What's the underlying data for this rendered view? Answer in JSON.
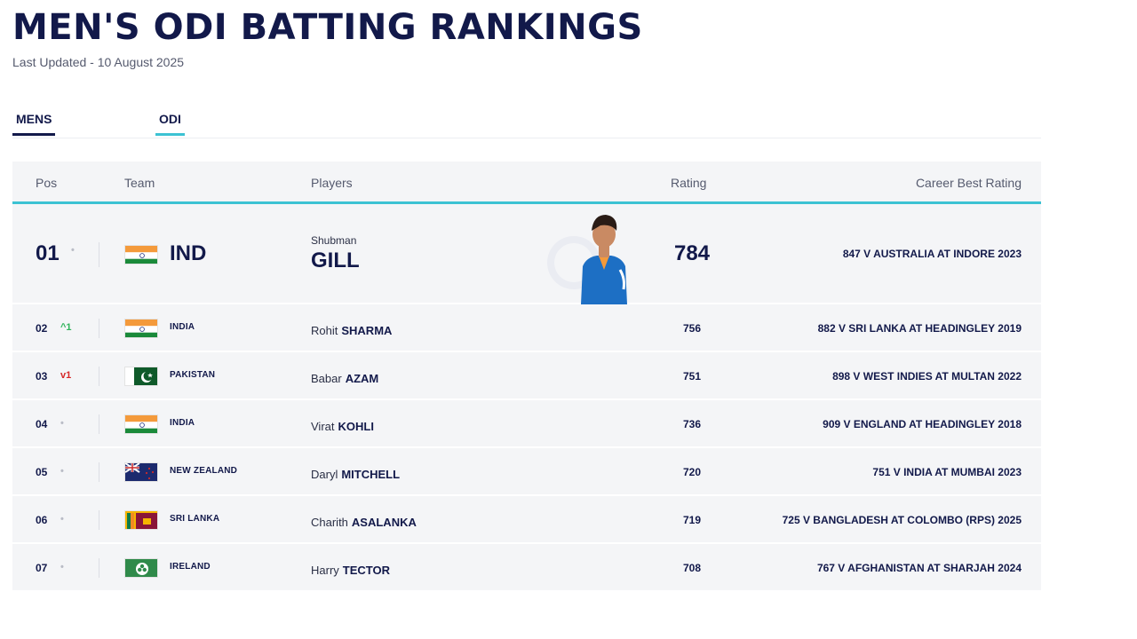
{
  "header": {
    "title": "MEN'S ODI BATTING RANKINGS",
    "updated": "Last Updated - 10 August 2025"
  },
  "tabs": [
    {
      "label": "MENS",
      "active": true
    },
    {
      "label": "ODI",
      "active": true
    }
  ],
  "table": {
    "columns": [
      "Pos",
      "Team",
      "Players",
      "Rating",
      "Career Best Rating"
    ],
    "rows": [
      {
        "pos": "01",
        "move": "•",
        "flag": "india-flag",
        "team": "IND",
        "first": "Shubman",
        "last": "GILL",
        "rating": "784",
        "best": "847 V AUSTRALIA AT INDORE 2023"
      },
      {
        "pos": "02",
        "move": "^1",
        "flag": "india-flag",
        "team": "INDIA",
        "first": "Rohit",
        "last": "SHARMA",
        "rating": "756",
        "best": "882 V SRI LANKA AT HEADINGLEY 2019"
      },
      {
        "pos": "03",
        "move": "v1",
        "flag": "pakistan-flag",
        "team": "PAKISTAN",
        "first": "Babar",
        "last": "AZAM",
        "rating": "751",
        "best": "898 V WEST INDIES AT MULTAN 2022"
      },
      {
        "pos": "04",
        "move": "•",
        "flag": "india-flag",
        "team": "INDIA",
        "first": "Virat",
        "last": "KOHLI",
        "rating": "736",
        "best": "909 V ENGLAND AT HEADINGLEY 2018"
      },
      {
        "pos": "05",
        "move": "•",
        "flag": "new-zealand-flag",
        "team": "NEW ZEALAND",
        "first": "Daryl",
        "last": "MITCHELL",
        "rating": "720",
        "best": "751 V INDIA AT MUMBAI 2023"
      },
      {
        "pos": "06",
        "move": "•",
        "flag": "sri-lanka-flag",
        "team": "SRI LANKA",
        "first": "Charith",
        "last": "ASALANKA",
        "rating": "719",
        "best": "725 V BANGLADESH AT COLOMBO (RPS) 2025"
      },
      {
        "pos": "07",
        "move": "•",
        "flag": "ireland-flag",
        "team": "IRELAND",
        "first": "Harry",
        "last": "TECTOR",
        "rating": "708",
        "best": "767 V AFGHANISTAN AT SHARJAH 2024"
      }
    ]
  },
  "colors": {
    "navy": "#12194a",
    "accent": "#3cc2d3",
    "up": "#2fb35a",
    "down": "#d62828",
    "rowBg": "#f4f5f7"
  }
}
